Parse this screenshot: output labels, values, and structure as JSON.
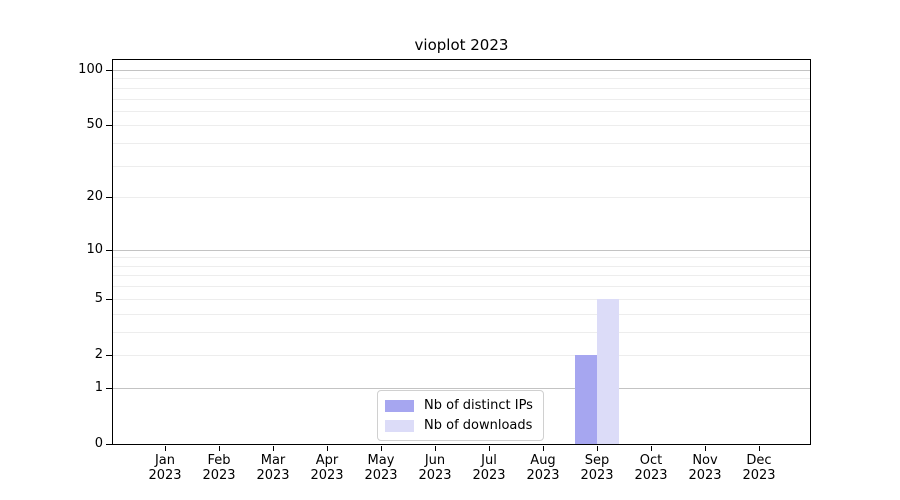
{
  "title": "vioplot 2023",
  "chart_data": {
    "type": "bar",
    "title": "vioplot 2023",
    "x_categories": [
      "Jan",
      "Feb",
      "Mar",
      "Apr",
      "May",
      "Jun",
      "Jul",
      "Aug",
      "Sep",
      "Oct",
      "Nov",
      "Dec"
    ],
    "x_year_label": "2023",
    "series": [
      {
        "name": "Nb of distinct IPs",
        "color": "#a6a6f0",
        "values": [
          0,
          0,
          0,
          0,
          0,
          0,
          0,
          0,
          2,
          0,
          0,
          0
        ]
      },
      {
        "name": "Nb of downloads",
        "color": "#dcdcf8",
        "values": [
          0,
          0,
          0,
          0,
          0,
          0,
          0,
          0,
          5,
          0,
          0,
          0
        ]
      }
    ],
    "y_scale": "log1p",
    "ylim": [
      0,
      100
    ],
    "y_tick_labels": [
      0,
      1,
      2,
      5,
      10,
      20,
      50,
      100
    ],
    "y_grid_major": [
      1,
      10,
      100
    ],
    "y_grid_minor": [
      2,
      3,
      4,
      5,
      6,
      7,
      8,
      9,
      20,
      30,
      40,
      50,
      60,
      70,
      80,
      90
    ],
    "grid": true,
    "legend_position": "inside-bottom-center"
  },
  "colors": {
    "grid_major": "#c3c3c3",
    "grid_minor": "#ededed",
    "axis": "#000000",
    "text": "#000000",
    "background": "#ffffff"
  }
}
